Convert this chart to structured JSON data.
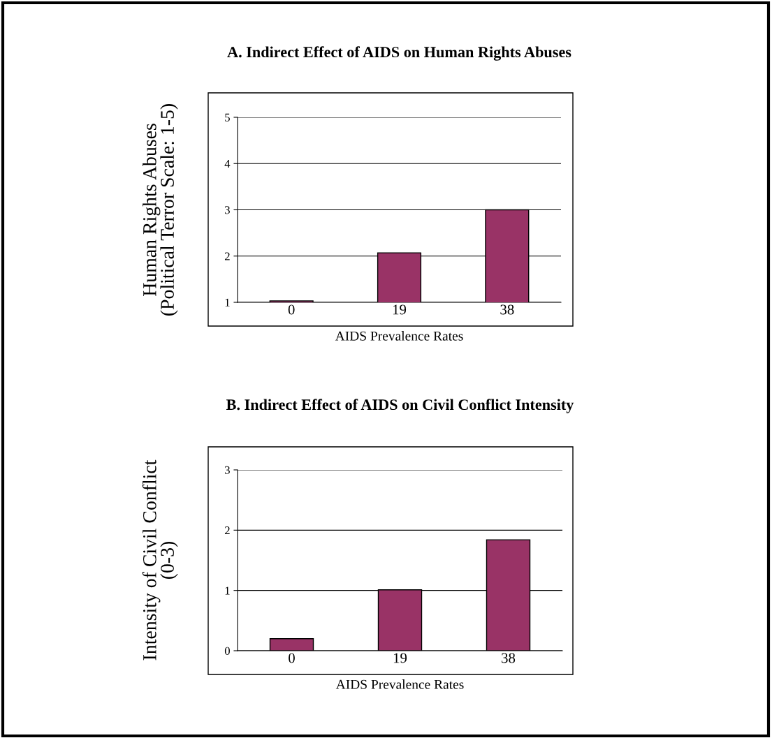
{
  "chart_data": [
    {
      "type": "bar",
      "title": "A. Indirect Effect of AIDS on Human Rights Abuses",
      "xlabel": "AIDS Prevalence Rates",
      "ylabel": "Human Rights Abuses\n(Political Terror Scale: 1-5)",
      "categories": [
        "0",
        "19",
        "38"
      ],
      "values": [
        1.03,
        2.07,
        3.0
      ],
      "color": "#993366",
      "ylim": [
        1,
        5
      ],
      "yticks": [
        1,
        2,
        3,
        4,
        5
      ],
      "grid": "y"
    },
    {
      "type": "bar",
      "title": "B. Indirect Effect of AIDS on Civil Conflict Intensity",
      "xlabel": "AIDS Prevalence Rates",
      "ylabel": "Intensity of Civil Conflict\n(0-3)",
      "categories": [
        "0",
        "19",
        "38"
      ],
      "values": [
        0.2,
        1.01,
        1.84
      ],
      "color": "#993366",
      "ylim": [
        0,
        3
      ],
      "yticks": [
        0,
        1,
        2,
        3
      ],
      "grid": "y"
    }
  ]
}
